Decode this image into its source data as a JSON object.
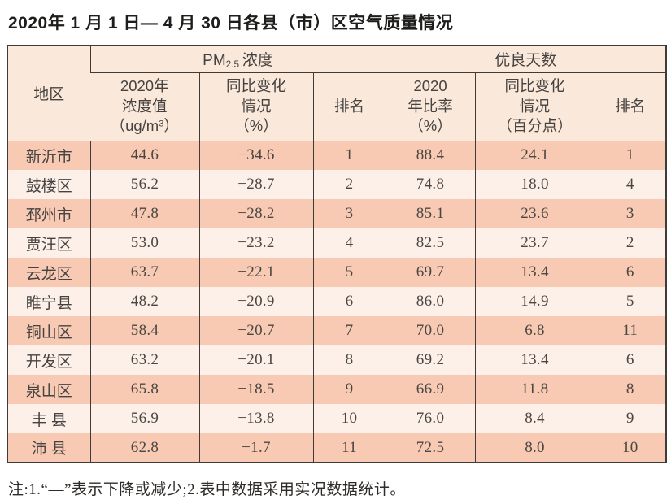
{
  "title": "2020年 1 月 1 日— 4 月 30 日各县（市）区空气质量情况",
  "colors": {
    "border": "#3f3b38",
    "row-odd": "#f8cab3",
    "row-even": "#fdf0e8",
    "header-bg": "#fae9db",
    "text": "#454240",
    "num-text": "#4b4642",
    "title-text": "#1f1d1b"
  },
  "table": {
    "header": {
      "region": "地区",
      "pm25_group": {
        "prefix": "PM",
        "sub": "2.5",
        "suffix": "浓度"
      },
      "good_days_group": "优良天数",
      "pm25_value": {
        "line1": "2020年",
        "line2": "浓度值",
        "unit_prefix": "（ug/m",
        "unit_sup": "3",
        "unit_suffix": "）"
      },
      "pm25_change": {
        "line1": "同比变化",
        "line2": "情况",
        "line3": "（%）"
      },
      "pm25_rank": "排名",
      "good_rate": {
        "line1": "2020",
        "line2": "年比率",
        "line3": "（%）"
      },
      "good_change": {
        "line1": "同比变化",
        "line2": "情况",
        "line3": "（百分点）"
      },
      "good_rank": "排名"
    },
    "row_fields": [
      "region",
      "pm25_value",
      "pm25_change",
      "pm25_rank",
      "rate",
      "rate_change",
      "rate_rank"
    ],
    "rows": [
      {
        "region": "新沂市",
        "pm25_value": "44.6",
        "pm25_change": "−34.6",
        "pm25_rank": "1",
        "rate": "88.4",
        "rate_change": "24.1",
        "rate_rank": "1"
      },
      {
        "region": "鼓楼区",
        "pm25_value": "56.2",
        "pm25_change": "−28.7",
        "pm25_rank": "2",
        "rate": "74.8",
        "rate_change": "18.0",
        "rate_rank": "4"
      },
      {
        "region": "邳州市",
        "pm25_value": "47.8",
        "pm25_change": "−28.2",
        "pm25_rank": "3",
        "rate": "85.1",
        "rate_change": "23.6",
        "rate_rank": "3"
      },
      {
        "region": "贾汪区",
        "pm25_value": "53.0",
        "pm25_change": "−23.2",
        "pm25_rank": "4",
        "rate": "82.5",
        "rate_change": "23.7",
        "rate_rank": "2"
      },
      {
        "region": "云龙区",
        "pm25_value": "63.7",
        "pm25_change": "−22.1",
        "pm25_rank": "5",
        "rate": "69.7",
        "rate_change": "13.4",
        "rate_rank": "6"
      },
      {
        "region": "睢宁县",
        "pm25_value": "48.2",
        "pm25_change": "−20.9",
        "pm25_rank": "6",
        "rate": "86.0",
        "rate_change": "14.9",
        "rate_rank": "5"
      },
      {
        "region": "铜山区",
        "pm25_value": "58.4",
        "pm25_change": "−20.7",
        "pm25_rank": "7",
        "rate": "70.0",
        "rate_change": "6.8",
        "rate_rank": "11"
      },
      {
        "region": "开发区",
        "pm25_value": "63.2",
        "pm25_change": "−20.1",
        "pm25_rank": "8",
        "rate": "69.2",
        "rate_change": "13.4",
        "rate_rank": "6"
      },
      {
        "region": "泉山区",
        "pm25_value": "65.8",
        "pm25_change": "−18.5",
        "pm25_rank": "9",
        "rate": "66.9",
        "rate_change": "11.8",
        "rate_rank": "8"
      },
      {
        "region": "丰 县",
        "pm25_value": "56.9",
        "pm25_change": "−13.8",
        "pm25_rank": "10",
        "rate": "76.0",
        "rate_change": "8.4",
        "rate_rank": "9"
      },
      {
        "region": "沛 县",
        "pm25_value": "62.8",
        "pm25_change": "−1.7",
        "pm25_rank": "11",
        "rate": "72.5",
        "rate_change": "8.0",
        "rate_rank": "10"
      }
    ]
  },
  "note": "注:1.“—”表示下降或减少;2.表中数据采用实况数据统计。"
}
